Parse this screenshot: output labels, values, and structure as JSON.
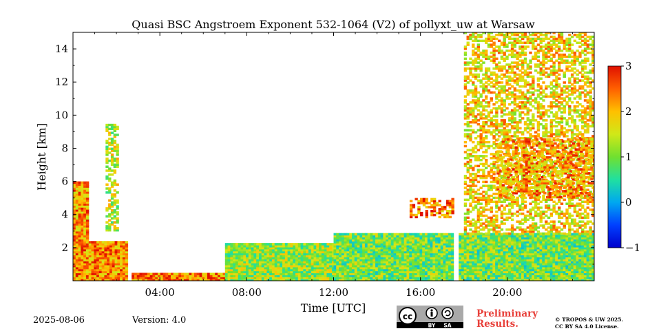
{
  "chart_data": {
    "type": "heatmap",
    "title": "Quasi BSC Angstroem Exponent 532-1064 (V2) of pollyxt_uw at Warsaw",
    "xlabel": "Time [UTC]",
    "ylabel": "Height [km]",
    "xlim": [
      0,
      24
    ],
    "ylim": [
      0,
      15
    ],
    "xticks": [
      4,
      8,
      12,
      16,
      20
    ],
    "xtick_labels": [
      "04:00",
      "08:00",
      "12:00",
      "16:00",
      "20:00"
    ],
    "yticks": [
      2,
      4,
      6,
      8,
      10,
      12,
      14
    ],
    "ytick_labels": [
      "2",
      "4",
      "6",
      "8",
      "10",
      "12",
      "14"
    ],
    "colorbar": {
      "min": -1,
      "max": 3,
      "ticks": [
        3,
        2,
        1,
        0,
        -1
      ],
      "tick_labels": [
        "3",
        "2",
        "1",
        "0",
        "−1"
      ],
      "colormap": "jet"
    },
    "data_gaps_hours": [
      [
        2.5,
        2.7
      ],
      [
        17.5,
        17.7
      ]
    ],
    "regions": [
      {
        "x": [
          0,
          2.5
        ],
        "y": [
          0,
          2.4
        ],
        "value": 2.3
      },
      {
        "x": [
          0,
          0.7
        ],
        "y": [
          2.4,
          6.0
        ],
        "value": 2.2
      },
      {
        "x": [
          1.5,
          2.1
        ],
        "y": [
          3.0,
          9.4
        ],
        "value": 1.4
      },
      {
        "x": [
          2.7,
          7.0
        ],
        "y": [
          0,
          0.4
        ],
        "value": 2.4
      },
      {
        "x": [
          7.0,
          12.0
        ],
        "y": [
          0,
          2.2
        ],
        "value": 1.2
      },
      {
        "x": [
          12.0,
          24.0
        ],
        "y": [
          0,
          2.8
        ],
        "value": 1.0
      },
      {
        "x": [
          15.5,
          17.5
        ],
        "y": [
          3.8,
          5.0
        ],
        "value": 2.4
      },
      {
        "x": [
          18.0,
          24.0
        ],
        "y": [
          2.8,
          15.0
        ],
        "value": 1.8
      },
      {
        "x": [
          19.5,
          24.0
        ],
        "y": [
          5.0,
          8.5
        ],
        "value": 2.2
      }
    ]
  },
  "footer": {
    "date": "2025-08-06",
    "version": "Version: 4.0",
    "preliminary_line1": "Preliminary",
    "preliminary_line2": "Results.",
    "credit_line1": "© TROPOS & UW 2025.",
    "credit_line2": "CC BY SA 4.0 License.",
    "license_logo": "cc-by-sa-badge",
    "license_by": "BY",
    "license_sa": "SA"
  }
}
